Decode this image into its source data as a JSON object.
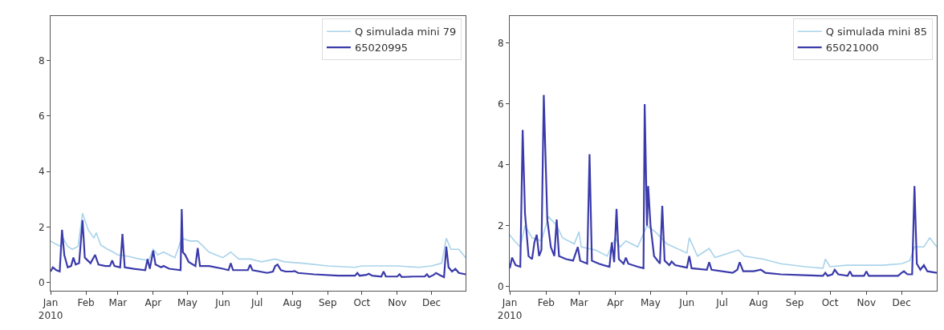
{
  "chart_data": [
    {
      "type": "line",
      "xlim": [
        "2010-01-01",
        "2010-12-31"
      ],
      "ylim": [
        -0.28,
        9.6
      ],
      "yticks": [
        0,
        2,
        4,
        6,
        8
      ],
      "xticks": [
        {
          "value": "2010-01-01",
          "label": "Jan\n2010"
        },
        {
          "value": "2010-02-01",
          "label": "Feb"
        },
        {
          "value": "2010-03-01",
          "label": "Mar"
        },
        {
          "value": "2010-04-01",
          "label": "Apr"
        },
        {
          "value": "2010-05-01",
          "label": "May"
        },
        {
          "value": "2010-06-01",
          "label": "Jun"
        },
        {
          "value": "2010-07-01",
          "label": "Jul"
        },
        {
          "value": "2010-08-01",
          "label": "Aug"
        },
        {
          "value": "2010-09-01",
          "label": "Sep"
        },
        {
          "value": "2010-10-01",
          "label": "Oct"
        },
        {
          "value": "2010-11-01",
          "label": "Nov"
        },
        {
          "value": "2010-12-01",
          "label": "Dec"
        }
      ],
      "legend": "top right",
      "marker": "none",
      "line_style": "solid",
      "series": [
        {
          "name": "Q simulada mini 79",
          "color": "#a9d3ea",
          "x": [
            "2010-01-01",
            "2010-01-05",
            "2010-01-10",
            "2010-01-12",
            "2010-01-16",
            "2010-01-20",
            "2010-01-25",
            "2010-01-29",
            "2010-02-03",
            "2010-02-08",
            "2010-02-10",
            "2010-02-14",
            "2010-02-20",
            "2010-02-25",
            "2010-03-01",
            "2010-03-10",
            "2010-03-20",
            "2010-03-28",
            "2010-04-01",
            "2010-04-05",
            "2010-04-10",
            "2010-04-20",
            "2010-04-26",
            "2010-05-03",
            "2010-05-10",
            "2010-05-20",
            "2010-06-01",
            "2010-06-08",
            "2010-06-15",
            "2010-06-25",
            "2010-07-05",
            "2010-07-17",
            "2010-07-25",
            "2010-08-10",
            "2010-09-01",
            "2010-09-25",
            "2010-10-01",
            "2010-10-15",
            "2010-11-01",
            "2010-11-20",
            "2010-12-01",
            "2010-12-10",
            "2010-12-14",
            "2010-12-18",
            "2010-12-25",
            "2010-12-31"
          ],
          "values": [
            1.5,
            1.4,
            1.3,
            1.6,
            1.3,
            1.2,
            1.3,
            2.5,
            1.9,
            1.6,
            1.8,
            1.35,
            1.2,
            1.1,
            1.0,
            0.95,
            0.85,
            0.8,
            1.2,
            1.0,
            1.1,
            0.9,
            1.6,
            1.5,
            1.5,
            1.1,
            0.9,
            1.1,
            0.85,
            0.85,
            0.75,
            0.85,
            0.75,
            0.7,
            0.6,
            0.55,
            0.6,
            0.6,
            0.6,
            0.55,
            0.6,
            0.7,
            1.6,
            1.2,
            1.2,
            0.9
          ]
        },
        {
          "name": "65020995",
          "color": "#3a3aaa",
          "x": [
            "2010-01-01",
            "2010-01-03",
            "2010-01-06",
            "2010-01-09",
            "2010-01-11",
            "2010-01-13",
            "2010-01-16",
            "2010-01-19",
            "2010-01-21",
            "2010-01-23",
            "2010-01-26",
            "2010-01-29",
            "2010-01-31",
            "2010-02-05",
            "2010-02-09",
            "2010-02-12",
            "2010-02-18",
            "2010-02-22",
            "2010-02-24",
            "2010-02-26",
            "2010-03-03",
            "2010-03-05",
            "2010-03-07",
            "2010-03-15",
            "2010-03-25",
            "2010-03-27",
            "2010-03-29",
            "2010-04-01",
            "2010-04-03",
            "2010-04-08",
            "2010-04-10",
            "2010-04-15",
            "2010-04-25",
            "2010-04-26",
            "2010-04-27",
            "2010-04-29",
            "2010-05-02",
            "2010-05-08",
            "2010-05-10",
            "2010-05-12",
            "2010-05-20",
            "2010-06-01",
            "2010-06-06",
            "2010-06-08",
            "2010-06-10",
            "2010-06-23",
            "2010-06-25",
            "2010-06-27",
            "2010-07-10",
            "2010-07-15",
            "2010-07-17",
            "2010-07-19",
            "2010-07-22",
            "2010-07-26",
            "2010-08-01",
            "2010-08-03",
            "2010-08-06",
            "2010-08-20",
            "2010-09-10",
            "2010-09-25",
            "2010-09-27",
            "2010-09-29",
            "2010-10-05",
            "2010-10-07",
            "2010-10-10",
            "2010-10-18",
            "2010-10-20",
            "2010-10-22",
            "2010-11-01",
            "2010-11-03",
            "2010-11-05",
            "2010-11-15",
            "2010-11-25",
            "2010-11-27",
            "2010-11-29",
            "2010-12-03",
            "2010-12-05",
            "2010-12-08",
            "2010-12-12",
            "2010-12-14",
            "2010-12-16",
            "2010-12-19",
            "2010-12-22",
            "2010-12-25",
            "2010-12-31"
          ],
          "values": [
            0.4,
            0.55,
            0.45,
            0.4,
            1.9,
            1.0,
            0.55,
            0.6,
            0.9,
            0.65,
            0.7,
            2.25,
            0.9,
            0.7,
            1.0,
            0.65,
            0.6,
            0.6,
            0.8,
            0.6,
            0.55,
            1.75,
            0.55,
            0.5,
            0.45,
            0.85,
            0.5,
            1.15,
            0.65,
            0.55,
            0.6,
            0.5,
            0.45,
            2.65,
            1.1,
            1.0,
            0.75,
            0.6,
            1.25,
            0.6,
            0.6,
            0.5,
            0.45,
            0.7,
            0.45,
            0.45,
            0.65,
            0.45,
            0.35,
            0.4,
            0.6,
            0.65,
            0.45,
            0.4,
            0.4,
            0.42,
            0.35,
            0.3,
            0.25,
            0.25,
            0.35,
            0.25,
            0.28,
            0.32,
            0.25,
            0.22,
            0.4,
            0.22,
            0.22,
            0.3,
            0.2,
            0.22,
            0.22,
            0.3,
            0.2,
            0.28,
            0.35,
            0.28,
            0.2,
            1.3,
            0.55,
            0.4,
            0.5,
            0.35,
            0.3
          ]
        }
      ]
    },
    {
      "type": "line",
      "xlim": [
        "2010-01-01",
        "2010-12-31"
      ],
      "ylim": [
        -0.13,
        8.9
      ],
      "yticks": [
        0,
        2,
        4,
        6,
        8
      ],
      "xticks": [
        {
          "value": "2010-01-01",
          "label": "Jan\n2010"
        },
        {
          "value": "2010-02-01",
          "label": "Feb"
        },
        {
          "value": "2010-03-01",
          "label": "Mar"
        },
        {
          "value": "2010-04-01",
          "label": "Apr"
        },
        {
          "value": "2010-05-01",
          "label": "May"
        },
        {
          "value": "2010-06-01",
          "label": "Jun"
        },
        {
          "value": "2010-07-01",
          "label": "Jul"
        },
        {
          "value": "2010-08-01",
          "label": "Aug"
        },
        {
          "value": "2010-09-01",
          "label": "Sep"
        },
        {
          "value": "2010-10-01",
          "label": "Oct"
        },
        {
          "value": "2010-11-01",
          "label": "Nov"
        },
        {
          "value": "2010-12-01",
          "label": "Dec"
        }
      ],
      "legend": "top right",
      "marker": "none",
      "line_style": "solid",
      "series": [
        {
          "name": "Q simulada mini 85",
          "color": "#a9d3ea",
          "x": [
            "2010-01-01",
            "2010-01-05",
            "2010-01-10",
            "2010-01-14",
            "2010-01-20",
            "2010-01-28",
            "2010-02-03",
            "2010-02-10",
            "2010-02-15",
            "2010-02-25",
            "2010-03-01",
            "2010-03-03",
            "2010-03-15",
            "2010-03-25",
            "2010-04-01",
            "2010-04-05",
            "2010-04-10",
            "2010-04-20",
            "2010-04-28",
            "2010-05-05",
            "2010-05-15",
            "2010-06-01",
            "2010-06-03",
            "2010-06-10",
            "2010-06-20",
            "2010-06-25",
            "2010-07-15",
            "2010-07-20",
            "2010-08-05",
            "2010-08-20",
            "2010-09-10",
            "2010-09-25",
            "2010-09-27",
            "2010-10-01",
            "2010-10-15",
            "2010-11-01",
            "2010-11-15",
            "2010-12-01",
            "2010-12-08",
            "2010-12-12",
            "2010-12-20",
            "2010-12-25",
            "2010-12-31"
          ],
          "values": [
            1.7,
            1.5,
            1.3,
            2.0,
            1.6,
            1.5,
            2.3,
            2.0,
            1.6,
            1.4,
            1.8,
            1.3,
            1.2,
            1.0,
            1.6,
            1.3,
            1.5,
            1.3,
            2.0,
            1.8,
            1.4,
            1.1,
            1.6,
            1.0,
            1.25,
            0.95,
            1.2,
            1.0,
            0.9,
            0.75,
            0.65,
            0.6,
            0.9,
            0.65,
            0.7,
            0.7,
            0.7,
            0.75,
            0.85,
            1.3,
            1.3,
            1.6,
            1.3
          ]
        },
        {
          "name": "65021000",
          "color": "#3a3aaa",
          "x": [
            "2010-01-01",
            "2010-01-03",
            "2010-01-06",
            "2010-01-10",
            "2010-01-12",
            "2010-01-14",
            "2010-01-17",
            "2010-01-20",
            "2010-01-22",
            "2010-01-24",
            "2010-01-26",
            "2010-01-28",
            "2010-01-30",
            "2010-02-02",
            "2010-02-05",
            "2010-02-08",
            "2010-02-10",
            "2010-02-12",
            "2010-02-18",
            "2010-02-24",
            "2010-02-28",
            "2010-03-02",
            "2010-03-08",
            "2010-03-10",
            "2010-03-12",
            "2010-03-18",
            "2010-03-22",
            "2010-03-27",
            "2010-03-29",
            "2010-03-31",
            "2010-04-02",
            "2010-04-04",
            "2010-04-08",
            "2010-04-10",
            "2010-04-12",
            "2010-04-20",
            "2010-04-25",
            "2010-04-26",
            "2010-04-28",
            "2010-04-29",
            "2010-05-01",
            "2010-05-04",
            "2010-05-09",
            "2010-05-11",
            "2010-05-13",
            "2010-05-17",
            "2010-05-19",
            "2010-05-22",
            "2010-06-01",
            "2010-06-03",
            "2010-06-05",
            "2010-06-18",
            "2010-06-20",
            "2010-06-22",
            "2010-07-10",
            "2010-07-14",
            "2010-07-16",
            "2010-07-19",
            "2010-07-28",
            "2010-08-03",
            "2010-08-07",
            "2010-08-20",
            "2010-09-10",
            "2010-09-25",
            "2010-09-27",
            "2010-09-29",
            "2010-10-03",
            "2010-10-05",
            "2010-10-08",
            "2010-10-16",
            "2010-10-18",
            "2010-10-20",
            "2010-10-30",
            "2010-11-01",
            "2010-11-03",
            "2010-11-20",
            "2010-11-28",
            "2010-12-01",
            "2010-12-03",
            "2010-12-06",
            "2010-12-10",
            "2010-12-12",
            "2010-12-14",
            "2010-12-17",
            "2010-12-20",
            "2010-12-23",
            "2010-12-31"
          ],
          "values": [
            0.6,
            0.95,
            0.7,
            0.65,
            5.15,
            2.4,
            1.0,
            0.9,
            1.45,
            1.7,
            1.0,
            1.2,
            6.3,
            2.2,
            1.3,
            1.0,
            2.2,
            1.0,
            0.9,
            0.85,
            1.3,
            0.85,
            0.75,
            4.35,
            0.85,
            0.75,
            0.7,
            0.65,
            1.45,
            0.8,
            2.55,
            0.9,
            0.75,
            0.95,
            0.75,
            0.65,
            0.6,
            6.0,
            2.0,
            3.3,
            2.0,
            1.0,
            0.75,
            2.65,
            0.85,
            0.7,
            0.82,
            0.7,
            0.62,
            1.0,
            0.6,
            0.55,
            0.8,
            0.55,
            0.45,
            0.55,
            0.8,
            0.5,
            0.5,
            0.55,
            0.45,
            0.4,
            0.37,
            0.35,
            0.45,
            0.35,
            0.4,
            0.55,
            0.4,
            0.35,
            0.5,
            0.35,
            0.35,
            0.5,
            0.35,
            0.35,
            0.35,
            0.45,
            0.5,
            0.4,
            0.4,
            3.3,
            0.75,
            0.55,
            0.7,
            0.5,
            0.45
          ]
        }
      ]
    }
  ]
}
